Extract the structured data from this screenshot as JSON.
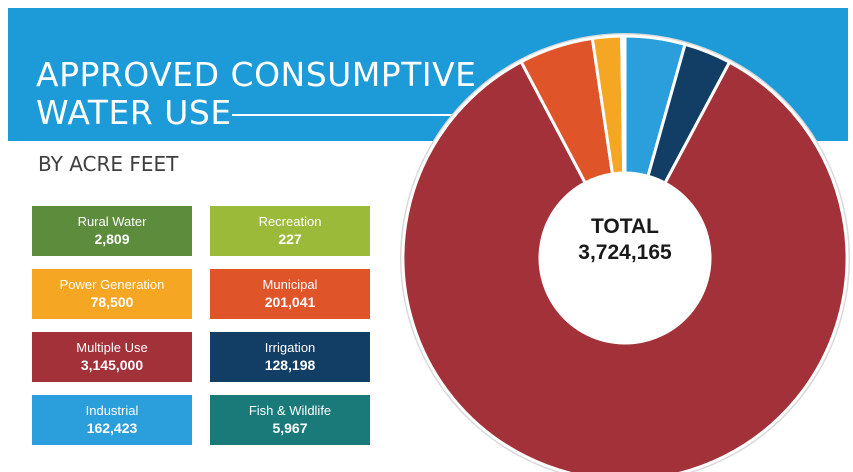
{
  "header": {
    "title_line1": "APPROVED CONSUMPTIVE",
    "title_line2": "WATER USE",
    "subtitle": "BY ACRE FEET"
  },
  "total": {
    "label": "TOTAL",
    "value": "3,724,165"
  },
  "legend": [
    {
      "label": "Rural Water",
      "value": "2,809",
      "color": "#5c8c3c"
    },
    {
      "label": "Recreation",
      "value": "227",
      "color": "#9cba3a"
    },
    {
      "label": "Power Generation",
      "value": "78,500",
      "color": "#f5a623"
    },
    {
      "label": "Municipal",
      "value": "201,041",
      "color": "#e0542a"
    },
    {
      "label": "Multiple Use",
      "value": "3,145,000",
      "color": "#a3313a"
    },
    {
      "label": "Irrigation",
      "value": "128,198",
      "color": "#123e66"
    },
    {
      "label": "Industrial",
      "value": "162,423",
      "color": "#2a9fdb"
    },
    {
      "label": "Fish & Wildlife",
      "value": "5,967",
      "color": "#1a7a7a"
    }
  ],
  "chart_data": {
    "type": "pie",
    "style": "donut",
    "categories": [
      "Industrial",
      "Irrigation",
      "Multiple Use",
      "Municipal",
      "Power Generation",
      "Fish & Wildlife",
      "Rural Water",
      "Recreation"
    ],
    "values": [
      162423,
      128198,
      3145000,
      201041,
      78500,
      5967,
      2809,
      227
    ],
    "colors": [
      "#2a9fdb",
      "#123e66",
      "#a3313a",
      "#e0542a",
      "#f5a623",
      "#1a7a7a",
      "#5c8c3c",
      "#9cba3a"
    ],
    "total": 3724165
  }
}
